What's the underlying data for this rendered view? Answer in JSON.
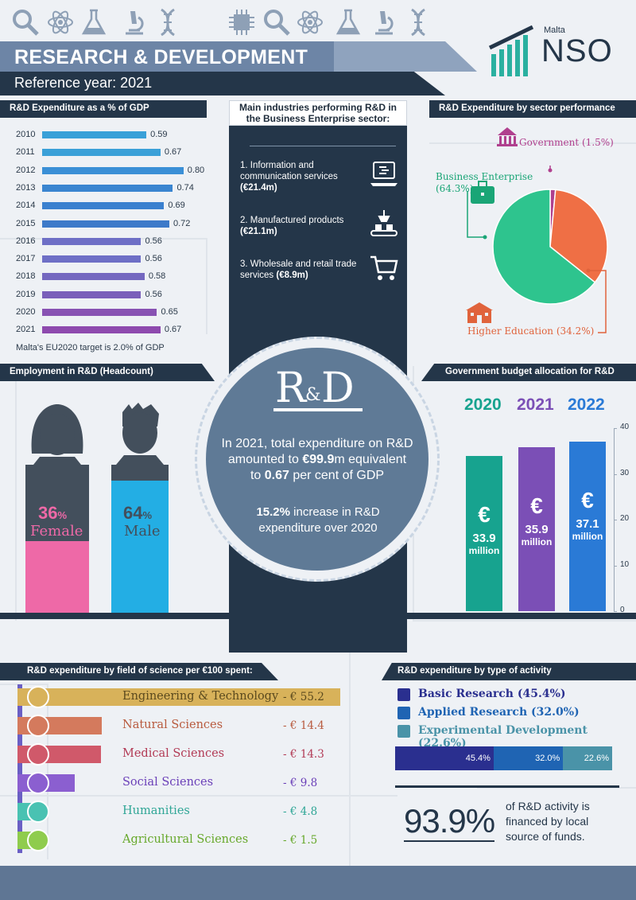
{
  "header": {
    "title": "RESEARCH & DEVELOPMENT",
    "subtitle": "Reference year: 2021",
    "logo_small": "Malta",
    "logo_big": "NSO",
    "top_icons": [
      "magnifier-icon",
      "atom-icon",
      "flask-icon",
      "microscope-icon",
      "dna-icon",
      "chip-icon"
    ]
  },
  "gdp_section": {
    "heading": "R&D Expenditure as a % of GDP",
    "note": "Malta's EU2020 target is 2.0% of GDP",
    "colors": [
      "#3aa0d8",
      "#3aa0d8",
      "#3a8fd6",
      "#3a85d0",
      "#3a80cf",
      "#3d7ac9",
      "#6e6fc6",
      "#6e6fc6",
      "#7468c0",
      "#7a5fba",
      "#8852b3",
      "#8e4aae"
    ]
  },
  "industries": {
    "heading_line1": "Main industries performing R&D in",
    "heading_line2": "the Business Enterprise sector:",
    "items": [
      {
        "text": "1. Information and communication services",
        "value": "(€21.4m)",
        "icon": "laptop-icon"
      },
      {
        "text": "2. Manufactured products",
        "value": "(€21.1m)",
        "icon": "conveyor-icon"
      },
      {
        "text": "3. Wholesale and retail trade services",
        "value": "(€8.9m)",
        "icon": "cart-icon"
      }
    ]
  },
  "sector_section": {
    "heading": "R&D Expenditure by sector performance"
  },
  "employment_section": {
    "heading": "Employment in R&D (Headcount)",
    "female_pct": "36",
    "female_label": "Female",
    "male_pct": "64",
    "male_label": "Male",
    "pct_sign": "%"
  },
  "center": {
    "rd_logo_left": "R",
    "rd_logo_amp": "&",
    "rd_logo_right": "D",
    "line1": "In 2021, total expenditure on R&D",
    "line2a": "amounted to ",
    "line2b": "€99.9",
    "line2c": "m equivalent",
    "line3a": "to ",
    "line3b": "0.67",
    "line3c": " per cent of GDP",
    "inc1a": "15.2%",
    "inc1b": " increase in R&D",
    "inc2": "expenditure over 2020"
  },
  "budget_section": {
    "heading": "Government budget allocation for R&D",
    "euro": "€",
    "million": "million",
    "values_text": [
      "33.9",
      "35.9",
      "37.1"
    ],
    "colors": [
      "#17a38f",
      "#7b4fb6",
      "#2a7ad6"
    ]
  },
  "fos_section": {
    "heading": "R&D expenditure by field of science per €100 spent:",
    "colors": [
      "#d8b25a",
      "#d47a5d",
      "#d0596a",
      "#8b5fd0",
      "#49c2b2",
      "#8fcc4d"
    ],
    "label_colors": [
      "#b08a2e",
      "#b85a3e",
      "#b23a55",
      "#6a3fb8",
      "#2fa696",
      "#66a82a"
    ],
    "icons": [
      "gear-bulb-icon",
      "solar-panel-icon",
      "pill-icon",
      "people-icon",
      "globe-icon",
      "wheat-icon"
    ]
  },
  "activity_section": {
    "heading": "R&D expenditure by type of activity",
    "colors": [
      "#2a2f8f",
      "#1f64b3",
      "#4a93a8"
    ],
    "pct_text": "93.9%",
    "pct_desc1": "of R&D activity is",
    "pct_desc2": "financed by local",
    "pct_desc3": "source of funds."
  },
  "chart_data": [
    {
      "type": "bar",
      "orientation": "horizontal",
      "title": "R&D Expenditure as a % of GDP",
      "categories": [
        "2010",
        "2011",
        "2012",
        "2013",
        "2014",
        "2015",
        "2016",
        "2017",
        "2018",
        "2019",
        "2020",
        "2021"
      ],
      "values": [
        0.59,
        0.67,
        0.8,
        0.74,
        0.69,
        0.72,
        0.56,
        0.56,
        0.58,
        0.56,
        0.65,
        0.67
      ],
      "value_labels": [
        "0.59",
        "0.67",
        "0.80",
        "0.74",
        "0.69",
        "0.72",
        "0.56",
        "0.56",
        "0.58",
        "0.56",
        "0.65",
        "0.67"
      ],
      "xlim": [
        0,
        0.9
      ]
    },
    {
      "type": "pie",
      "title": "R&D Expenditure by sector performance",
      "labels": [
        "Government (1.5%)",
        "Business Enterprise (64.3%)",
        "Higher Education (34.2%)"
      ],
      "values": [
        1.5,
        64.3,
        34.2
      ],
      "colors": [
        "#b0408e",
        "#2ec48e",
        "#ef6f45"
      ],
      "label_colors": [
        "#b0408e",
        "#1aa576",
        "#e0633c"
      ]
    },
    {
      "type": "bar",
      "title": "Government budget allocation for R&D",
      "categories": [
        "2020",
        "2021",
        "2022"
      ],
      "values": [
        33.9,
        35.9,
        37.1
      ],
      "ylim": [
        0,
        40
      ],
      "yticks": [
        "0",
        "10",
        "20",
        "30",
        "40"
      ]
    },
    {
      "type": "bar",
      "orientation": "horizontal",
      "title": "R&D expenditure by field of science per €100 spent:",
      "categories": [
        "Engineering & Technology",
        "Natural Sciences",
        "Medical Sciences",
        "Social Sciences",
        "Humanities",
        "Agricultural Sciences"
      ],
      "values": [
        55.2,
        14.4,
        14.3,
        9.8,
        4.8,
        1.5
      ],
      "value_labels": [
        "- € 55.2",
        "- € 14.4",
        "- € 14.3",
        "- € 9.8",
        "- € 4.8",
        "- € 1.5"
      ]
    },
    {
      "type": "bar",
      "orientation": "horizontal",
      "stacked": true,
      "title": "R&D expenditure by type of activity",
      "categories": [
        "Basic Research",
        "Applied Research",
        "Experimental Development"
      ],
      "values": [
        45.4,
        32.0,
        22.6
      ],
      "legend_labels": [
        "Basic Research  (45.4%)",
        "Applied Research  (32.0%)",
        "Experimental Development  (22.6%)"
      ],
      "value_labels": [
        "45.4%",
        "32.0%",
        "22.6%"
      ]
    }
  ]
}
